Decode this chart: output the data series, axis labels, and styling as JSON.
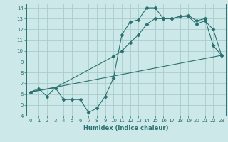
{
  "xlabel": "Humidex (Indice chaleur)",
  "bg_color": "#cce8e8",
  "grid_color": "#aacccc",
  "line_color": "#2a7070",
  "xlim": [
    -0.5,
    23.5
  ],
  "ylim": [
    4,
    14.4
  ],
  "xticks": [
    0,
    1,
    2,
    3,
    4,
    5,
    6,
    7,
    8,
    9,
    10,
    11,
    12,
    13,
    14,
    15,
    16,
    17,
    18,
    19,
    20,
    21,
    22,
    23
  ],
  "yticks": [
    4,
    5,
    6,
    7,
    8,
    9,
    10,
    11,
    12,
    13,
    14
  ],
  "line1": {
    "x": [
      0,
      1,
      2,
      3,
      4,
      5,
      6,
      7,
      8,
      9,
      10,
      11,
      12,
      13,
      14,
      15,
      16,
      17,
      18,
      19,
      20,
      21,
      22,
      23
    ],
    "y": [
      6.2,
      6.5,
      5.8,
      6.6,
      5.5,
      5.5,
      5.5,
      4.3,
      4.7,
      5.8,
      7.5,
      11.5,
      12.7,
      12.9,
      14.0,
      14.0,
      13.0,
      13.0,
      13.2,
      13.3,
      12.8,
      13.0,
      10.5,
      9.6
    ]
  },
  "line2": {
    "x": [
      0,
      3,
      10,
      11,
      12,
      13,
      14,
      15,
      16,
      17,
      18,
      19,
      20,
      21,
      22,
      23
    ],
    "y": [
      6.2,
      6.6,
      9.5,
      10.0,
      10.8,
      11.5,
      12.5,
      13.0,
      13.0,
      13.0,
      13.2,
      13.2,
      12.5,
      12.8,
      12.0,
      9.6
    ]
  },
  "line3": {
    "x": [
      0,
      23
    ],
    "y": [
      6.2,
      9.6
    ]
  }
}
